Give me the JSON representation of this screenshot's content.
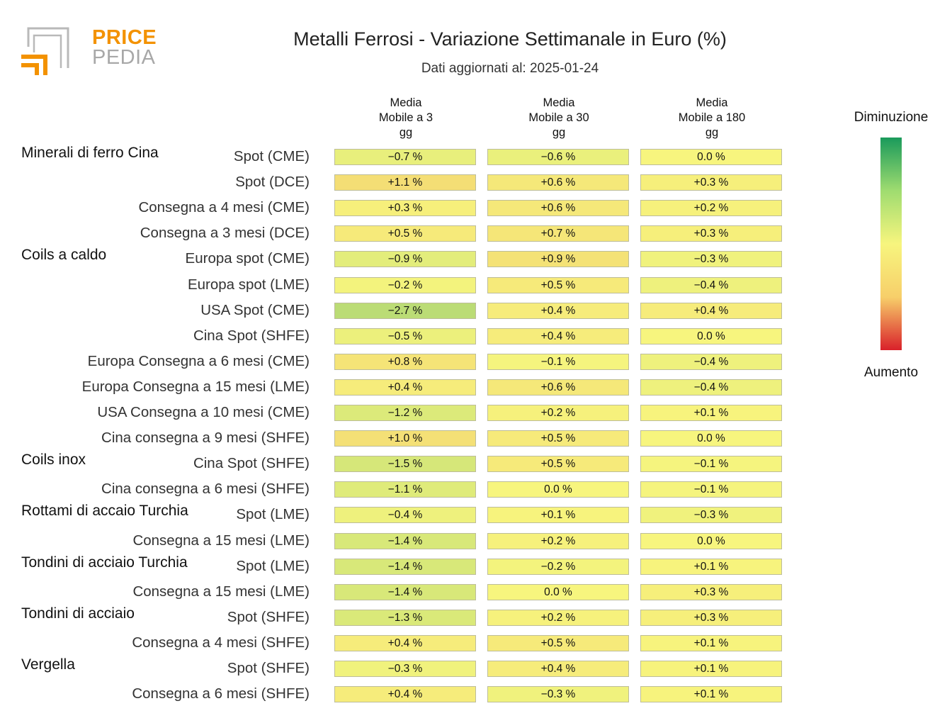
{
  "logo": {
    "word1": "PRICE",
    "word2": "PEDIA"
  },
  "title": "Metalli Ferrosi - Variazione Settimanale in Euro (%)",
  "subtitle": "Dati aggiornati al: 2025-01-24",
  "columns": [
    [
      "Media",
      "Mobile a 3",
      "gg"
    ],
    [
      "Media",
      "Mobile a 30",
      "gg"
    ],
    [
      "Media",
      "Mobile a 180",
      "gg"
    ]
  ],
  "legend": {
    "top": "Diminuzione",
    "bottom": "Aumento",
    "colors": [
      "#1a9a5b",
      "#9fdc70",
      "#f7f57e",
      "#f7cf6a",
      "#d9202a"
    ]
  },
  "chart_data": {
    "type": "table",
    "title": "Metalli Ferrosi - Variazione Settimanale in Euro (%)",
    "color_scale": {
      "negative_end": "#1a9a5b",
      "neutral": "#f7f57e",
      "positive_end": "#d9202a"
    },
    "groups": [
      {
        "name": "Minerali di ferro Cina",
        "rows": [
          {
            "label": "Spot (CME)",
            "values": [
              -0.7,
              -0.6,
              0.0
            ],
            "text": [
              "−0.7 %",
              "−0.6 %",
              "0.0 %"
            ]
          },
          {
            "label": "Spot (DCE)",
            "values": [
              1.1,
              0.6,
              0.3
            ],
            "text": [
              "+1.1 %",
              "+0.6 %",
              "+0.3 %"
            ]
          },
          {
            "label": "Consegna a 4 mesi (CME)",
            "values": [
              0.3,
              0.6,
              0.2
            ],
            "text": [
              "+0.3 %",
              "+0.6 %",
              "+0.2 %"
            ]
          },
          {
            "label": "Consegna a 3 mesi (DCE)",
            "values": [
              0.5,
              0.7,
              0.3
            ],
            "text": [
              "+0.5 %",
              "+0.7 %",
              "+0.3 %"
            ]
          }
        ]
      },
      {
        "name": "Coils a caldo",
        "rows": [
          {
            "label": "Europa spot (CME)",
            "values": [
              -0.9,
              0.9,
              -0.3
            ],
            "text": [
              "−0.9 %",
              "+0.9 %",
              "−0.3 %"
            ]
          },
          {
            "label": "Europa spot (LME)",
            "values": [
              -0.2,
              0.5,
              -0.4
            ],
            "text": [
              "−0.2 %",
              "+0.5 %",
              "−0.4 %"
            ]
          },
          {
            "label": "USA Spot (CME)",
            "values": [
              -2.7,
              0.4,
              0.4
            ],
            "text": [
              "−2.7 %",
              "+0.4 %",
              "+0.4 %"
            ]
          },
          {
            "label": "Cina Spot (SHFE)",
            "values": [
              -0.5,
              0.4,
              0.0
            ],
            "text": [
              "−0.5 %",
              "+0.4 %",
              "0.0 %"
            ]
          },
          {
            "label": "Europa Consegna a 6 mesi (CME)",
            "values": [
              0.8,
              -0.1,
              -0.4
            ],
            "text": [
              "+0.8 %",
              "−0.1 %",
              "−0.4 %"
            ]
          },
          {
            "label": "Europa Consegna a 15 mesi (LME)",
            "values": [
              0.4,
              0.6,
              -0.4
            ],
            "text": [
              "+0.4 %",
              "+0.6 %",
              "−0.4 %"
            ]
          },
          {
            "label": "USA Consegna a 10 mesi (CME)",
            "values": [
              -1.2,
              0.2,
              0.1
            ],
            "text": [
              "−1.2 %",
              "+0.2 %",
              "+0.1 %"
            ]
          },
          {
            "label": "Cina consegna a 9 mesi (SHFE)",
            "values": [
              1.0,
              0.5,
              0.0
            ],
            "text": [
              "+1.0 %",
              "+0.5 %",
              "0.0 %"
            ]
          }
        ]
      },
      {
        "name": "Coils inox",
        "rows": [
          {
            "label": "Cina Spot (SHFE)",
            "values": [
              -1.5,
              0.5,
              -0.1
            ],
            "text": [
              "−1.5 %",
              "+0.5 %",
              "−0.1 %"
            ]
          },
          {
            "label": "Cina consegna a 6 mesi (SHFE)",
            "values": [
              -1.1,
              0.0,
              -0.1
            ],
            "text": [
              "−1.1 %",
              "0.0 %",
              "−0.1 %"
            ]
          }
        ]
      },
      {
        "name": "Rottami di accaio Turchia",
        "rows": [
          {
            "label": "Spot (LME)",
            "values": [
              -0.4,
              0.1,
              -0.3
            ],
            "text": [
              "−0.4 %",
              "+0.1 %",
              "−0.3 %"
            ]
          },
          {
            "label": "Consegna a 15 mesi (LME)",
            "values": [
              -1.4,
              0.2,
              0.0
            ],
            "text": [
              "−1.4 %",
              "+0.2 %",
              "0.0 %"
            ]
          }
        ]
      },
      {
        "name": "Tondini di acciaio Turchia",
        "rows": [
          {
            "label": "Spot (LME)",
            "values": [
              -1.4,
              -0.2,
              0.1
            ],
            "text": [
              "−1.4 %",
              "−0.2 %",
              "+0.1 %"
            ]
          },
          {
            "label": "Consegna a 15 mesi (LME)",
            "values": [
              -1.4,
              0.0,
              0.3
            ],
            "text": [
              "−1.4 %",
              "0.0 %",
              "+0.3 %"
            ]
          }
        ]
      },
      {
        "name": "Tondini di acciaio",
        "rows": [
          {
            "label": "Spot (SHFE)",
            "values": [
              -1.3,
              0.2,
              0.3
            ],
            "text": [
              "−1.3 %",
              "+0.2 %",
              "+0.3 %"
            ]
          },
          {
            "label": "Consegna a 4 mesi (SHFE)",
            "values": [
              0.4,
              0.5,
              0.1
            ],
            "text": [
              "+0.4 %",
              "+0.5 %",
              "+0.1 %"
            ]
          }
        ]
      },
      {
        "name": "Vergella",
        "rows": [
          {
            "label": "Spot (SHFE)",
            "values": [
              -0.3,
              0.4,
              0.1
            ],
            "text": [
              "−0.3 %",
              "+0.4 %",
              "+0.1 %"
            ]
          },
          {
            "label": "Consegna a 6 mesi (SHFE)",
            "values": [
              0.4,
              -0.3,
              0.1
            ],
            "text": [
              "+0.4 %",
              "−0.3 %",
              "+0.1 %"
            ]
          }
        ]
      }
    ]
  }
}
